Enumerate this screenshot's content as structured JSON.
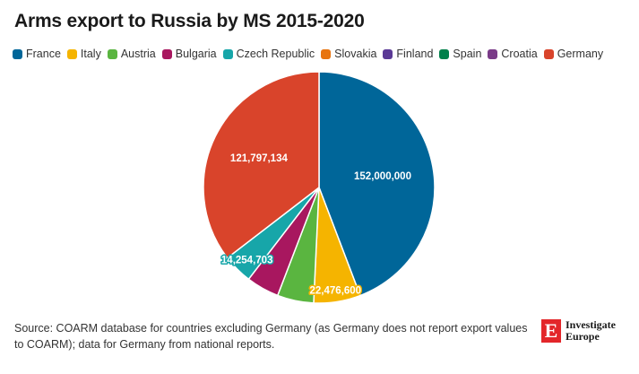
{
  "title": "Arms export to Russia by MS 2015-2020",
  "source": "Source: COARM database for countries excluding Germany (as Germany does not report export values to COARM); data for Germany from national reports.",
  "logo": {
    "mark": "E",
    "line1": "Investigate",
    "line2": "Europe"
  },
  "chart_data": {
    "type": "pie",
    "title": "Arms export to Russia by MS 2015-2020",
    "start": "12 o'clock",
    "direction": "clockwise",
    "slices": [
      {
        "name": "France",
        "value": 152000000,
        "label": "152,000,000",
        "color": "#006699"
      },
      {
        "name": "Italy",
        "value": 22476600,
        "label": "22,476,600",
        "color": "#f5b400"
      },
      {
        "name": "Austria",
        "value": 17500000,
        "label": "",
        "color": "#5ab540"
      },
      {
        "name": "Bulgaria",
        "value": 15800000,
        "label": "",
        "color": "#a8175f"
      },
      {
        "name": "Czech Republic",
        "value": 14254703,
        "label": "14,254,703",
        "color": "#17a6a9"
      },
      {
        "name": "Slovakia",
        "value": 0,
        "label": "",
        "color": "#e8740f"
      },
      {
        "name": "Finland",
        "value": 0,
        "label": "",
        "color": "#5b3a96"
      },
      {
        "name": "Spain",
        "value": 0,
        "label": "",
        "color": "#00804a"
      },
      {
        "name": "Croatia",
        "value": 0,
        "label": "",
        "color": "#7a3b88"
      },
      {
        "name": "Germany",
        "value": 121797134,
        "label": "121,797,134",
        "color": "#d9442b"
      }
    ]
  }
}
